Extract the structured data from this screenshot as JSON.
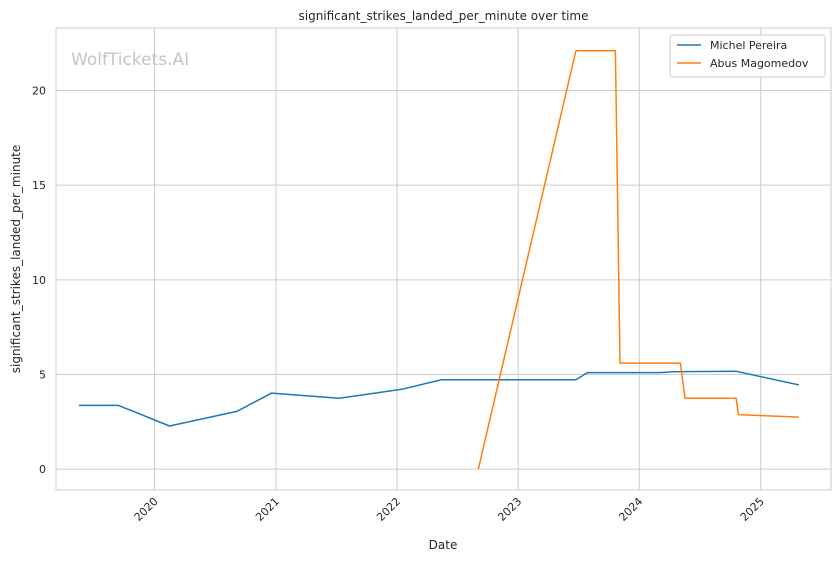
{
  "chart_data": {
    "type": "line",
    "title": "significant_strikes_landed_per_minute over time",
    "xlabel": "Date",
    "ylabel": "significant_strikes_landed_per_minute",
    "watermark": "WolfTickets.AI",
    "x_ticks": [
      "2020",
      "2021",
      "2022",
      "2023",
      "2024",
      "2025"
    ],
    "y_ticks": [
      0,
      5,
      10,
      15,
      20
    ],
    "xlim": [
      "2019-03-10",
      "2025-08-01"
    ],
    "ylim": [
      -1.1,
      23.3
    ],
    "grid": true,
    "legend_position": "top-right",
    "series": [
      {
        "name": "Michel Pereira",
        "color": "#1f77b4",
        "points": [
          {
            "x": "2019-05-18",
            "y": 3.37
          },
          {
            "x": "2019-09-14",
            "y": 3.37
          },
          {
            "x": "2020-02-15",
            "y": 2.28
          },
          {
            "x": "2020-09-05",
            "y": 3.05
          },
          {
            "x": "2020-12-19",
            "y": 4.02
          },
          {
            "x": "2021-07-10",
            "y": 3.75
          },
          {
            "x": "2022-01-15",
            "y": 4.22
          },
          {
            "x": "2022-05-14",
            "y": 4.72
          },
          {
            "x": "2023-06-24",
            "y": 4.72
          },
          {
            "x": "2023-07-29",
            "y": 5.1
          },
          {
            "x": "2024-03-02",
            "y": 5.1
          },
          {
            "x": "2024-04-13",
            "y": 5.15
          },
          {
            "x": "2024-10-19",
            "y": 5.17
          },
          {
            "x": "2025-04-26",
            "y": 4.45
          }
        ]
      },
      {
        "name": "Abus Magomedov",
        "color": "#ff7f0e",
        "points": [
          {
            "x": "2022-09-03",
            "y": 0.0
          },
          {
            "x": "2023-06-24",
            "y": 22.1
          },
          {
            "x": "2023-10-21",
            "y": 22.1
          },
          {
            "x": "2023-11-04",
            "y": 5.6
          },
          {
            "x": "2024-05-04",
            "y": 5.6
          },
          {
            "x": "2024-05-18",
            "y": 3.75
          },
          {
            "x": "2024-10-19",
            "y": 3.75
          },
          {
            "x": "2024-10-26",
            "y": 2.88
          },
          {
            "x": "2025-04-26",
            "y": 2.75
          }
        ]
      }
    ]
  }
}
